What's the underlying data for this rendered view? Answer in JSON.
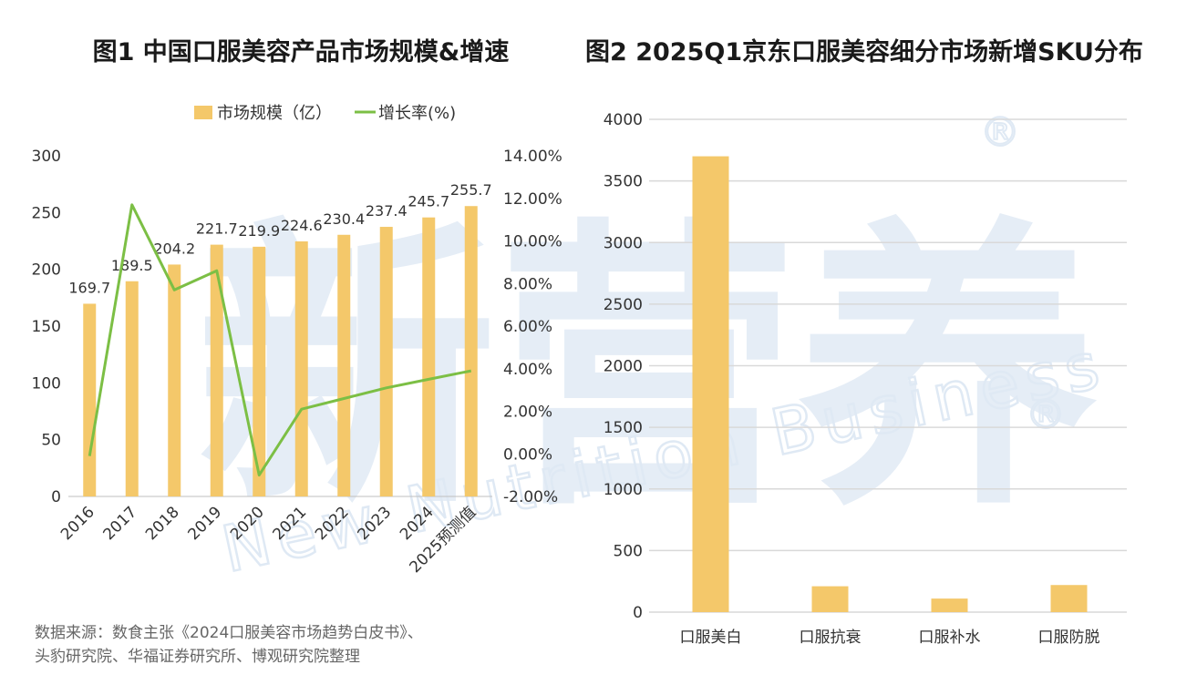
{
  "chart_data": [
    {
      "type": "bar+line",
      "title": "图1 中国口服美容产品市场规模&增速",
      "categories": [
        "2016",
        "2017",
        "2018",
        "2019",
        "2020",
        "2021",
        "2022",
        "2023",
        "2024",
        "2025预测值"
      ],
      "series": [
        {
          "name": "市场规模（亿）",
          "type": "bar",
          "axis": "left",
          "values": [
            169.7,
            189.5,
            204.2,
            221.7,
            219.9,
            224.6,
            230.4,
            237.4,
            245.7,
            255.7
          ],
          "labels": [
            "169.7",
            "189.5",
            "204.2",
            "221.7",
            "219.9",
            "224.6",
            "230.4",
            "237.4",
            "245.7",
            "255.7"
          ],
          "color": "#f4c86a"
        },
        {
          "name": "增长率(%)",
          "type": "line",
          "axis": "right",
          "values": [
            -0.1,
            11.7,
            7.7,
            8.6,
            -1.0,
            2.1,
            2.6,
            3.1,
            3.5,
            3.9
          ],
          "color": "#7cbf45"
        }
      ],
      "left_axis": {
        "min": 0,
        "max": 300,
        "ticks": [
          "0",
          "50",
          "100",
          "150",
          "200",
          "250",
          "300"
        ]
      },
      "right_axis": {
        "min": -2,
        "max": 14,
        "ticks": [
          "-2.00%",
          "0.00%",
          "2.00%",
          "4.00%",
          "6.00%",
          "8.00%",
          "10.00%",
          "12.00%",
          "14.00%"
        ]
      },
      "source_lines": [
        "数据来源：数食主张《2024口服美容市场趋势白皮书》、",
        "头豹研究院、华福证券研究所、博观研究院整理"
      ]
    },
    {
      "type": "bar",
      "title": "图2 2025Q1京东口服美容细分市场新增SKU分布",
      "categories": [
        "口服美白",
        "口服抗衰",
        "口服补水",
        "口服防脱"
      ],
      "values": [
        3700,
        210,
        110,
        220
      ],
      "ylim": [
        0,
        4000
      ],
      "yticks": [
        "0",
        "500",
        "1000",
        "1500",
        "2000",
        "2500",
        "3000",
        "3500",
        "4000"
      ],
      "grid": true,
      "color": "#f4c86a"
    }
  ],
  "watermark": {
    "text": "New Nutrition Business",
    "logo_chars": "新营养"
  },
  "colors": {
    "bar": "#f4c86a",
    "line": "#7cbf45",
    "grid": "#d9d9d9",
    "axis": "#bfbfbf"
  }
}
